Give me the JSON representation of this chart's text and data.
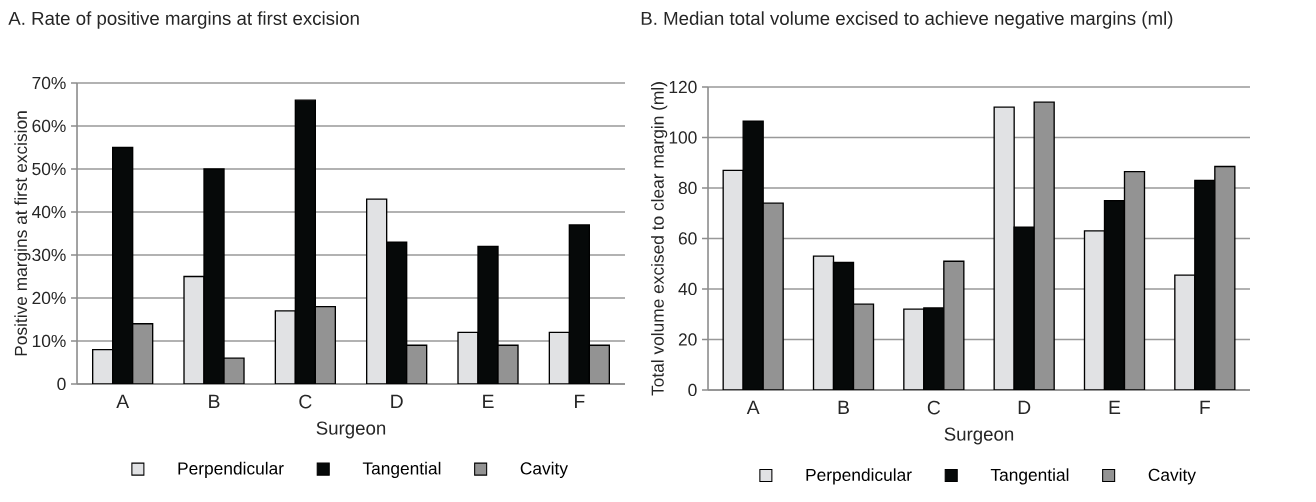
{
  "chart_data": [
    {
      "type": "bar",
      "title": "A. Rate of positive margins at first excision",
      "xlabel": "Surgeon",
      "ylabel": "Positive margins at first excision",
      "categories": [
        "A",
        "B",
        "C",
        "D",
        "E",
        "F"
      ],
      "series": [
        {
          "name": "Perpendicular",
          "color": "#e1e2e4",
          "values": [
            8,
            25,
            17,
            43,
            12,
            12
          ]
        },
        {
          "name": "Tangential",
          "color": "#060909",
          "values": [
            55,
            50,
            66,
            33,
            32,
            37
          ]
        },
        {
          "name": "Cavity",
          "color": "#939393",
          "values": [
            14,
            6,
            18,
            9,
            9,
            9
          ]
        }
      ],
      "ylim": [
        0,
        70
      ],
      "yticks": [
        0,
        {
          "value": 10,
          "label": "10%"
        },
        {
          "value": 20,
          "label": "20%"
        },
        {
          "value": 30,
          "label": "30%"
        },
        {
          "value": 40,
          "label": "40%"
        },
        {
          "value": 50,
          "label": "50%"
        },
        {
          "value": 60,
          "label": "60%"
        },
        {
          "value": 70,
          "label": "70%"
        }
      ],
      "grid": "y",
      "legend": "bottom"
    },
    {
      "type": "bar",
      "title": "B. Median total volume excised to achieve negative margins (ml)",
      "xlabel": "Surgeon",
      "ylabel": "Total volume excised to clear margin (ml)",
      "categories": [
        "A",
        "B",
        "C",
        "D",
        "E",
        "F"
      ],
      "series": [
        {
          "name": "Perpendicular",
          "color": "#e1e2e4",
          "values": [
            87,
            53,
            32,
            112,
            63,
            45.5
          ]
        },
        {
          "name": "Tangential",
          "color": "#060909",
          "values": [
            106.5,
            50.5,
            32.5,
            64.5,
            75,
            83
          ]
        },
        {
          "name": "Cavity",
          "color": "#939393",
          "values": [
            74,
            34,
            51,
            114,
            86.5,
            88.5
          ]
        }
      ],
      "ylim": [
        0,
        120
      ],
      "yticks": [
        0,
        20,
        40,
        60,
        80,
        100,
        120
      ],
      "grid": "y",
      "legend": "bottom"
    }
  ]
}
